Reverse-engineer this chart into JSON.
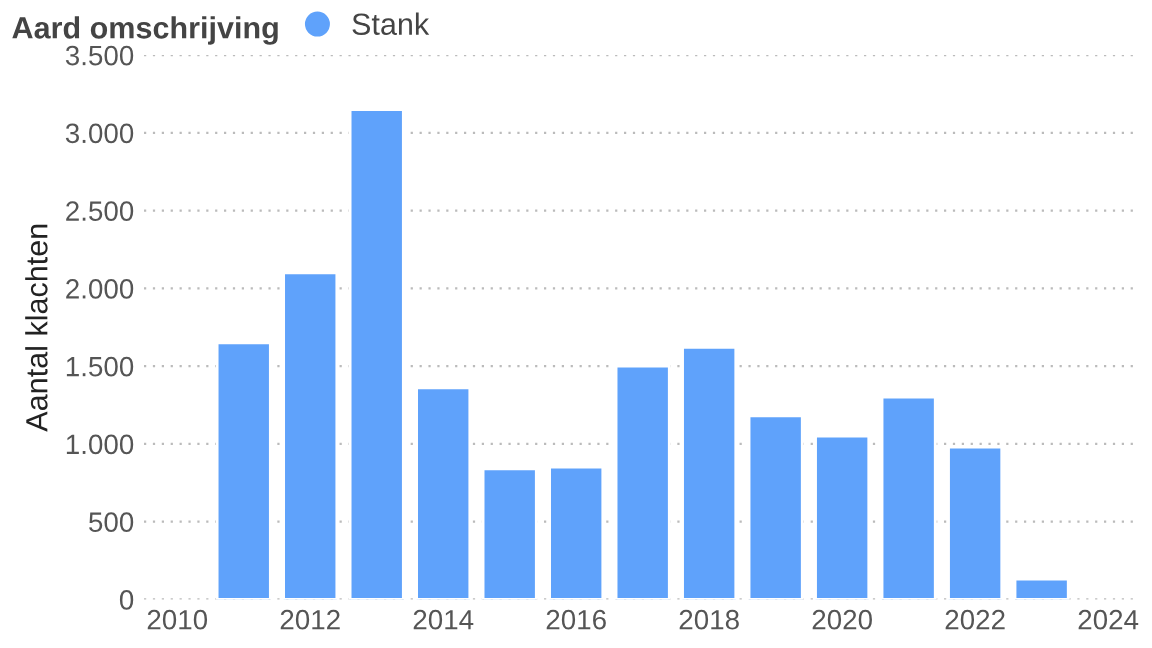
{
  "chart_data": {
    "type": "bar",
    "legend_title": "Aard omschrijving",
    "ylabel": "Aantal klachten",
    "x": [
      2011,
      2012,
      2013,
      2014,
      2015,
      2016,
      2017,
      2018,
      2019,
      2020,
      2021,
      2022,
      2023
    ],
    "series": [
      {
        "name": "Stank",
        "color": "#5fa2fb",
        "values": [
          1650,
          2100,
          3150,
          1360,
          840,
          850,
          1500,
          1620,
          1180,
          1050,
          1300,
          980,
          130
        ]
      }
    ],
    "xlim": [
      2009.5,
      2024.4
    ],
    "xticks": [
      2010,
      2012,
      2014,
      2016,
      2018,
      2020,
      2022,
      2024
    ],
    "ylim": [
      0,
      3500
    ],
    "yticks": [
      {
        "value": 0,
        "label": "0"
      },
      {
        "value": 500,
        "label": "500"
      },
      {
        "value": 1000,
        "label": "1.000"
      },
      {
        "value": 1500,
        "label": "1.500"
      },
      {
        "value": 2000,
        "label": "2.000"
      },
      {
        "value": 2500,
        "label": "2.500"
      },
      {
        "value": 3000,
        "label": "3.000"
      },
      {
        "value": 3500,
        "label": "3.500"
      }
    ],
    "grid": "y",
    "legend": "top left"
  }
}
